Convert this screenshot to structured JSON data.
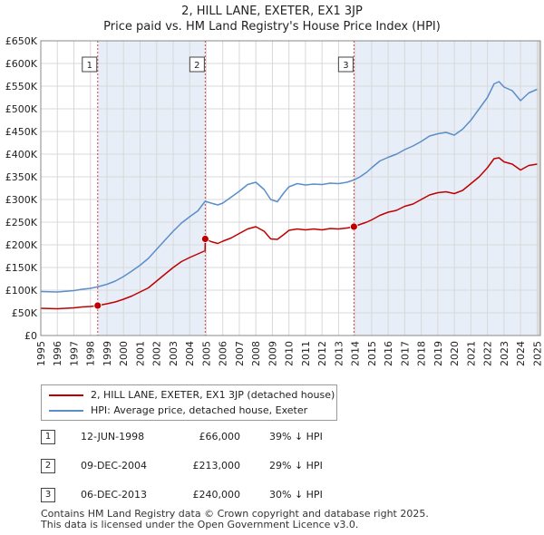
{
  "title": {
    "line1": "2, HILL LANE, EXETER, EX1 3JP",
    "line2": "Price paid vs. HM Land Registry's House Price Index (HPI)"
  },
  "chart_data": {
    "type": "line",
    "title": "Price paid vs. HM Land Registry's House Price Index (HPI)",
    "xlabel": "",
    "ylabel": "",
    "xlim": [
      1995,
      2025.2
    ],
    "ylim": [
      0,
      650000
    ],
    "y_ticks": [
      0,
      50000,
      100000,
      150000,
      200000,
      250000,
      300000,
      350000,
      400000,
      450000,
      500000,
      550000,
      600000,
      650000
    ],
    "y_tick_labels": [
      "£0",
      "£50K",
      "£100K",
      "£150K",
      "£200K",
      "£250K",
      "£300K",
      "£350K",
      "£400K",
      "£450K",
      "£500K",
      "£550K",
      "£600K",
      "£650K"
    ],
    "x_tick_labels": [
      "1995",
      "1996",
      "1997",
      "1998",
      "1999",
      "2000",
      "2001",
      "2002",
      "2003",
      "2004",
      "2005",
      "2006",
      "2007",
      "2008",
      "2009",
      "2010",
      "2011",
      "2012",
      "2013",
      "2014",
      "2015",
      "2016",
      "2017",
      "2018",
      "2019",
      "2020",
      "2021",
      "2022",
      "2023",
      "2024",
      "2025"
    ],
    "grid": true,
    "series": [
      {
        "name": "2, HILL LANE, EXETER, EX1 3JP (detached house)",
        "color": "#c00000",
        "x": [
          1995.0,
          1996.0,
          1997.0,
          1997.5,
          1998.0,
          1998.44,
          1999.0,
          1999.5,
          2000.0,
          2000.5,
          2001.0,
          2001.5,
          2002.0,
          2002.5,
          2003.0,
          2003.5,
          2004.0,
          2004.5,
          2004.93,
          2004.94,
          2005.3,
          2005.7,
          2006.0,
          2006.5,
          2007.0,
          2007.5,
          2008.0,
          2008.5,
          2008.9,
          2009.3,
          2009.7,
          2010.0,
          2010.5,
          2011.0,
          2011.5,
          2012.0,
          2012.5,
          2013.0,
          2013.5,
          2013.93,
          2014.3,
          2014.7,
          2015.0,
          2015.5,
          2016.0,
          2016.5,
          2017.0,
          2017.5,
          2018.0,
          2018.5,
          2019.0,
          2019.5,
          2020.0,
          2020.5,
          2021.0,
          2021.5,
          2022.0,
          2022.4,
          2022.7,
          2023.0,
          2023.5,
          2024.0,
          2024.5,
          2025.0
        ],
        "y": [
          60000,
          59000,
          61000,
          63000,
          64000,
          66000,
          70000,
          74000,
          80000,
          87000,
          96000,
          105000,
          120000,
          135000,
          150000,
          163000,
          172000,
          180000,
          187000,
          213000,
          207000,
          203000,
          208000,
          215000,
          225000,
          235000,
          240000,
          230000,
          213000,
          212000,
          223000,
          232000,
          235000,
          233000,
          235000,
          233000,
          236000,
          235000,
          237000,
          240000,
          245000,
          250000,
          255000,
          265000,
          272000,
          276000,
          285000,
          290000,
          300000,
          310000,
          315000,
          317000,
          313000,
          320000,
          335000,
          350000,
          370000,
          390000,
          392000,
          383000,
          378000,
          365000,
          375000,
          378000
        ]
      },
      {
        "name": "HPI: Average price, detached house, Exeter",
        "color": "#5b8ec9",
        "x": [
          1995.0,
          1996.0,
          1997.0,
          1997.5,
          1998.0,
          1998.5,
          1999.0,
          1999.5,
          2000.0,
          2000.5,
          2001.0,
          2001.5,
          2002.0,
          2002.5,
          2003.0,
          2003.5,
          2004.0,
          2004.5,
          2004.93,
          2005.3,
          2005.7,
          2006.0,
          2006.5,
          2007.0,
          2007.5,
          2008.0,
          2008.5,
          2008.9,
          2009.3,
          2009.7,
          2010.0,
          2010.5,
          2011.0,
          2011.5,
          2012.0,
          2012.5,
          2013.0,
          2013.5,
          2013.93,
          2014.3,
          2014.7,
          2015.0,
          2015.5,
          2016.0,
          2016.5,
          2017.0,
          2017.5,
          2018.0,
          2018.5,
          2019.0,
          2019.5,
          2020.0,
          2020.5,
          2021.0,
          2021.5,
          2022.0,
          2022.4,
          2022.7,
          2023.0,
          2023.5,
          2024.0,
          2024.5,
          2025.0
        ],
        "y": [
          97000,
          96000,
          99000,
          102000,
          104000,
          108000,
          113000,
          120000,
          130000,
          142000,
          155000,
          170000,
          190000,
          210000,
          230000,
          248000,
          262000,
          275000,
          296000,
          292000,
          288000,
          292000,
          305000,
          318000,
          333000,
          338000,
          322000,
          300000,
          295000,
          315000,
          328000,
          335000,
          332000,
          334000,
          333000,
          336000,
          335000,
          338000,
          343000,
          350000,
          360000,
          370000,
          385000,
          393000,
          400000,
          410000,
          418000,
          428000,
          440000,
          445000,
          448000,
          442000,
          455000,
          475000,
          500000,
          525000,
          555000,
          560000,
          548000,
          540000,
          518000,
          535000,
          543000
        ]
      }
    ],
    "sales": [
      {
        "label": "1",
        "x": 1998.44,
        "y": 66000
      },
      {
        "label": "2",
        "x": 2004.94,
        "y": 213000
      },
      {
        "label": "3",
        "x": 2013.93,
        "y": 240000
      }
    ],
    "sale_markers": [
      "1",
      "2",
      "3"
    ]
  },
  "legend": {
    "red_label": "2, HILL LANE, EXETER, EX1 3JP (detached house)",
    "blue_label": "HPI: Average price, detached house, Exeter"
  },
  "sales_table": [
    {
      "num": "1",
      "date": "12-JUN-1998",
      "price": "£66,000",
      "hpi": "39% ↓ HPI"
    },
    {
      "num": "2",
      "date": "09-DEC-2004",
      "price": "£213,000",
      "hpi": "29% ↓ HPI"
    },
    {
      "num": "3",
      "date": "06-DEC-2013",
      "price": "£240,000",
      "hpi": "30% ↓ HPI"
    }
  ],
  "footer": {
    "line1": "Contains HM Land Registry data © Crown copyright and database right 2025.",
    "line2": "This data is licensed under the Open Government Licence v3.0."
  }
}
